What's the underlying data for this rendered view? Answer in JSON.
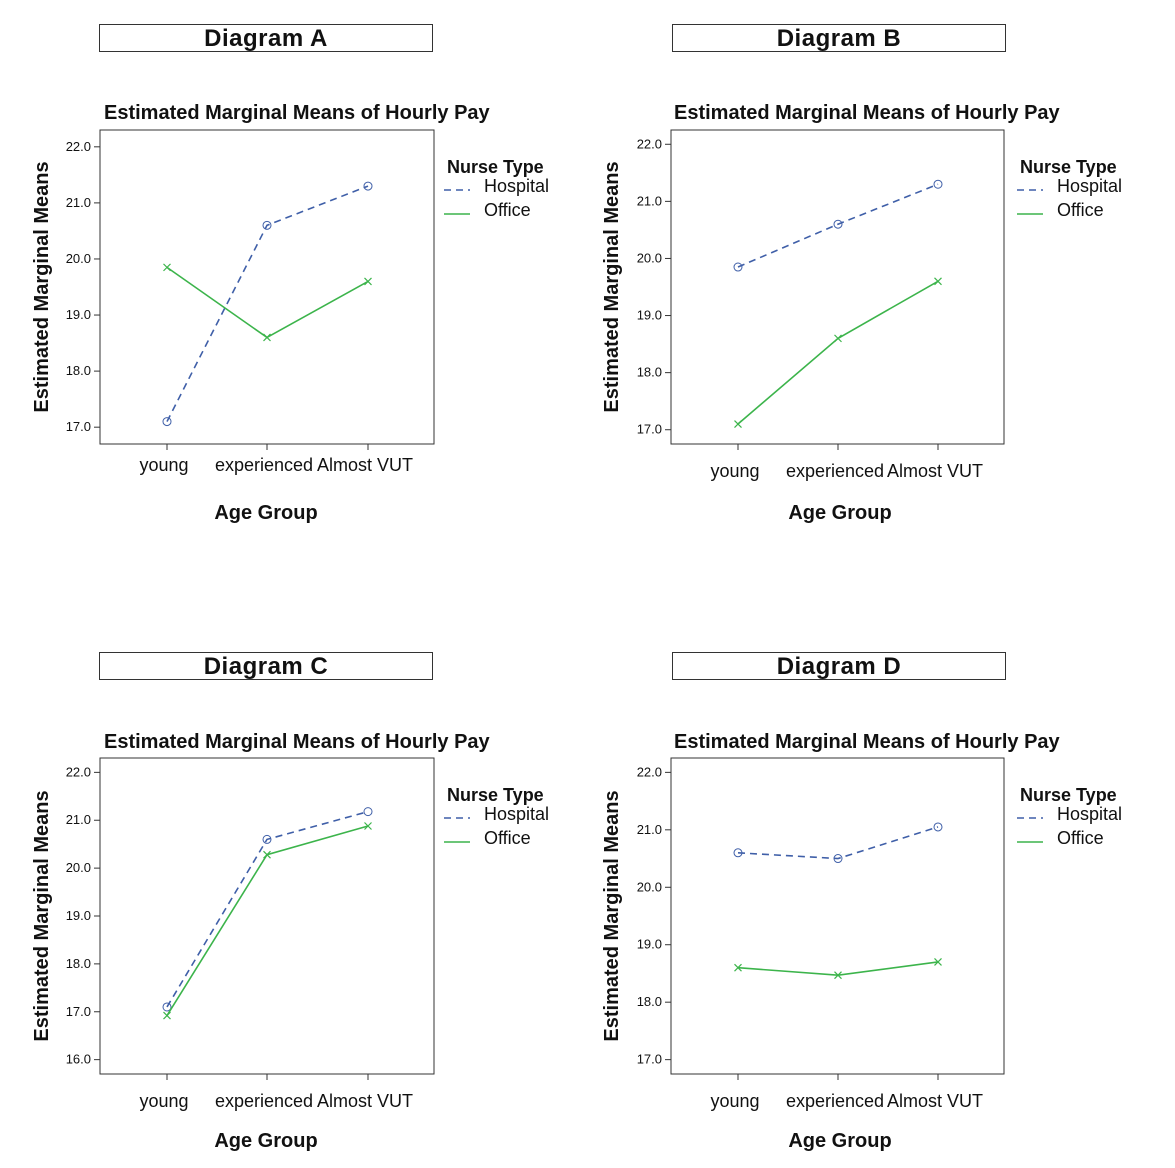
{
  "chart_data": [
    {
      "type": "line",
      "panel_label": "Diagram A",
      "title": "Estimated Marginal Means of  Hourly Pay",
      "xlabel": "Age Group",
      "ylabel": "Estimated Marginal Means",
      "categories": [
        "young",
        "experienced",
        "Almost VUT"
      ],
      "ylim": [
        16.7,
        22.3
      ],
      "yticks": [
        "17.0",
        "18.0",
        "19.0",
        "20.0",
        "21.0",
        "22.0"
      ],
      "legend_title": "Nurse Type",
      "legend_position": "right",
      "series": [
        {
          "name": "Hospital",
          "values": [
            17.1,
            20.6,
            21.3
          ],
          "color": "#3f5fa8",
          "dash": "dashed",
          "marker": "circle"
        },
        {
          "name": "Office",
          "values": [
            19.85,
            18.6,
            19.6
          ],
          "color": "#3cb44b",
          "dash": "solid",
          "marker": "x"
        }
      ]
    },
    {
      "type": "line",
      "panel_label": "Diagram B",
      "title": "Estimated Marginal Means of  Hourly Pay",
      "xlabel": "Age Group",
      "ylabel": "Estimated Marginal Means",
      "categories": [
        "young",
        "experienced",
        "Almost VUT"
      ],
      "ylim": [
        16.75,
        22.25
      ],
      "yticks": [
        "17.0",
        "18.0",
        "19.0",
        "20.0",
        "21.0",
        "22.0"
      ],
      "legend_title": "Nurse Type",
      "legend_position": "right",
      "series": [
        {
          "name": "Hospital",
          "values": [
            19.85,
            20.6,
            21.3
          ],
          "color": "#3f5fa8",
          "dash": "dashed",
          "marker": "circle"
        },
        {
          "name": "Office",
          "values": [
            17.1,
            18.6,
            19.6
          ],
          "color": "#3cb44b",
          "dash": "solid",
          "marker": "x"
        }
      ]
    },
    {
      "type": "line",
      "panel_label": "Diagram C",
      "title": "Estimated Marginal Means of  Hourly Pay",
      "xlabel": "Age Group",
      "ylabel": "Estimated Marginal Means",
      "categories": [
        "young",
        "experienced",
        "Almost VUT"
      ],
      "ylim": [
        15.7,
        22.3
      ],
      "yticks": [
        "16.0",
        "17.0",
        "18.0",
        "19.0",
        "20.0",
        "21.0",
        "22.0"
      ],
      "legend_title": "Nurse Type",
      "legend_position": "right",
      "series": [
        {
          "name": "Hospital",
          "values": [
            17.1,
            20.6,
            21.18
          ],
          "color": "#3f5fa8",
          "dash": "dashed",
          "marker": "circle"
        },
        {
          "name": "Office",
          "values": [
            16.92,
            20.28,
            20.88
          ],
          "color": "#3cb44b",
          "dash": "solid",
          "marker": "x"
        }
      ]
    },
    {
      "type": "line",
      "panel_label": "Diagram D",
      "title": "Estimated Marginal Means of  Hourly Pay",
      "xlabel": "Age Group",
      "ylabel": "Estimated Marginal Means",
      "categories": [
        "young",
        "experienced",
        "Almost VUT"
      ],
      "ylim": [
        16.75,
        22.25
      ],
      "yticks": [
        "17.0",
        "18.0",
        "19.0",
        "20.0",
        "21.0",
        "22.0"
      ],
      "legend_title": "Nurse Type",
      "legend_position": "right",
      "series": [
        {
          "name": "Hospital",
          "values": [
            20.6,
            20.5,
            21.05
          ],
          "color": "#3f5fa8",
          "dash": "dashed",
          "marker": "circle"
        },
        {
          "name": "Office",
          "values": [
            18.6,
            18.47,
            18.7
          ],
          "color": "#3cb44b",
          "dash": "solid",
          "marker": "x"
        }
      ]
    }
  ]
}
